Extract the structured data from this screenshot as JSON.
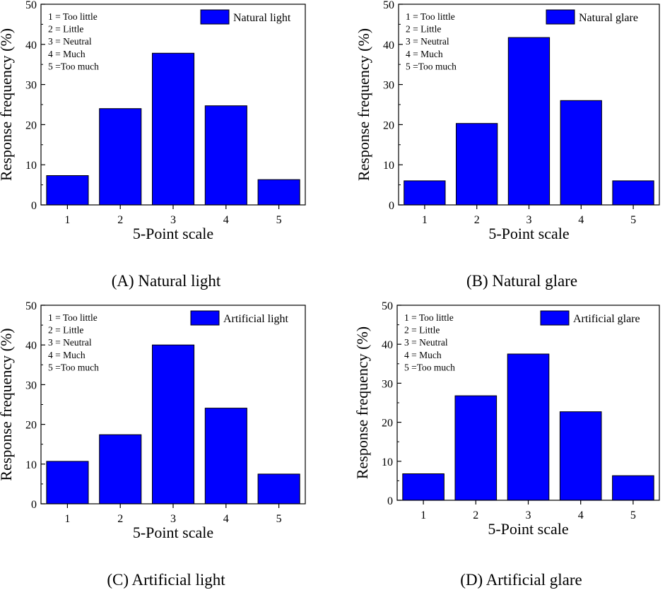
{
  "chart_data": [
    {
      "type": "bar",
      "panel": "A",
      "categories": [
        "1",
        "2",
        "3",
        "4",
        "5"
      ],
      "values": [
        7.3,
        24.0,
        37.8,
        24.7,
        6.3
      ],
      "legend": "Natural light",
      "caption": "(A) Natural light",
      "xlabel": "5-Point scale",
      "ylabel": "Response frequency (%)",
      "ylim": [
        0,
        50
      ],
      "yticks": [
        "0",
        "10",
        "20",
        "30",
        "40",
        "50"
      ],
      "scale_notes": [
        "1 = Too little",
        "2 = Little",
        "3 = Neutral",
        "4 = Much",
        "5 =Too much"
      ],
      "bar_color": "#0000ff"
    },
    {
      "type": "bar",
      "panel": "B",
      "categories": [
        "1",
        "2",
        "3",
        "4",
        "5"
      ],
      "values": [
        6.0,
        20.3,
        41.7,
        26.0,
        6.0
      ],
      "legend": "Natural glare",
      "caption": "(B) Natural glare",
      "xlabel": "5-Point scale",
      "ylabel": "Response frequency (%)",
      "ylim": [
        0,
        50
      ],
      "yticks": [
        "0",
        "10",
        "20",
        "30",
        "40",
        "50"
      ],
      "scale_notes": [
        "1 = Too little",
        "2 = Little",
        "3 = Neutral",
        "4 = Much",
        "5 =Too much"
      ],
      "bar_color": "#0000ff"
    },
    {
      "type": "bar",
      "panel": "C",
      "categories": [
        "1",
        "2",
        "3",
        "4",
        "5"
      ],
      "values": [
        10.7,
        17.4,
        40.0,
        24.1,
        7.5
      ],
      "legend": "Artificial light",
      "caption": "(C) Artificial light",
      "xlabel": "5-Point scale",
      "ylabel": "Response frequency (%)",
      "ylim": [
        0,
        50
      ],
      "yticks": [
        "0",
        "10",
        "20",
        "30",
        "40",
        "50"
      ],
      "scale_notes": [
        "1 = Too little",
        "2 = Little",
        "3 = Neutral",
        "4 = Much",
        "5 =Too much"
      ],
      "bar_color": "#0000ff"
    },
    {
      "type": "bar",
      "panel": "D",
      "categories": [
        "1",
        "2",
        "3",
        "4",
        "5"
      ],
      "values": [
        6.8,
        26.8,
        37.5,
        22.7,
        6.3
      ],
      "legend": "Artificial glare",
      "caption": "(D) Artificial glare",
      "xlabel": "5-Point scale",
      "ylabel": "Response frequency (%)",
      "ylim": [
        0,
        50
      ],
      "yticks": [
        "0",
        "10",
        "20",
        "30",
        "40",
        "50"
      ],
      "scale_notes": [
        "1 = Too little",
        "2 = Little",
        "3 = Neutral",
        "4 = Much",
        "5 =Too much"
      ],
      "bar_color": "#0000ff"
    }
  ]
}
